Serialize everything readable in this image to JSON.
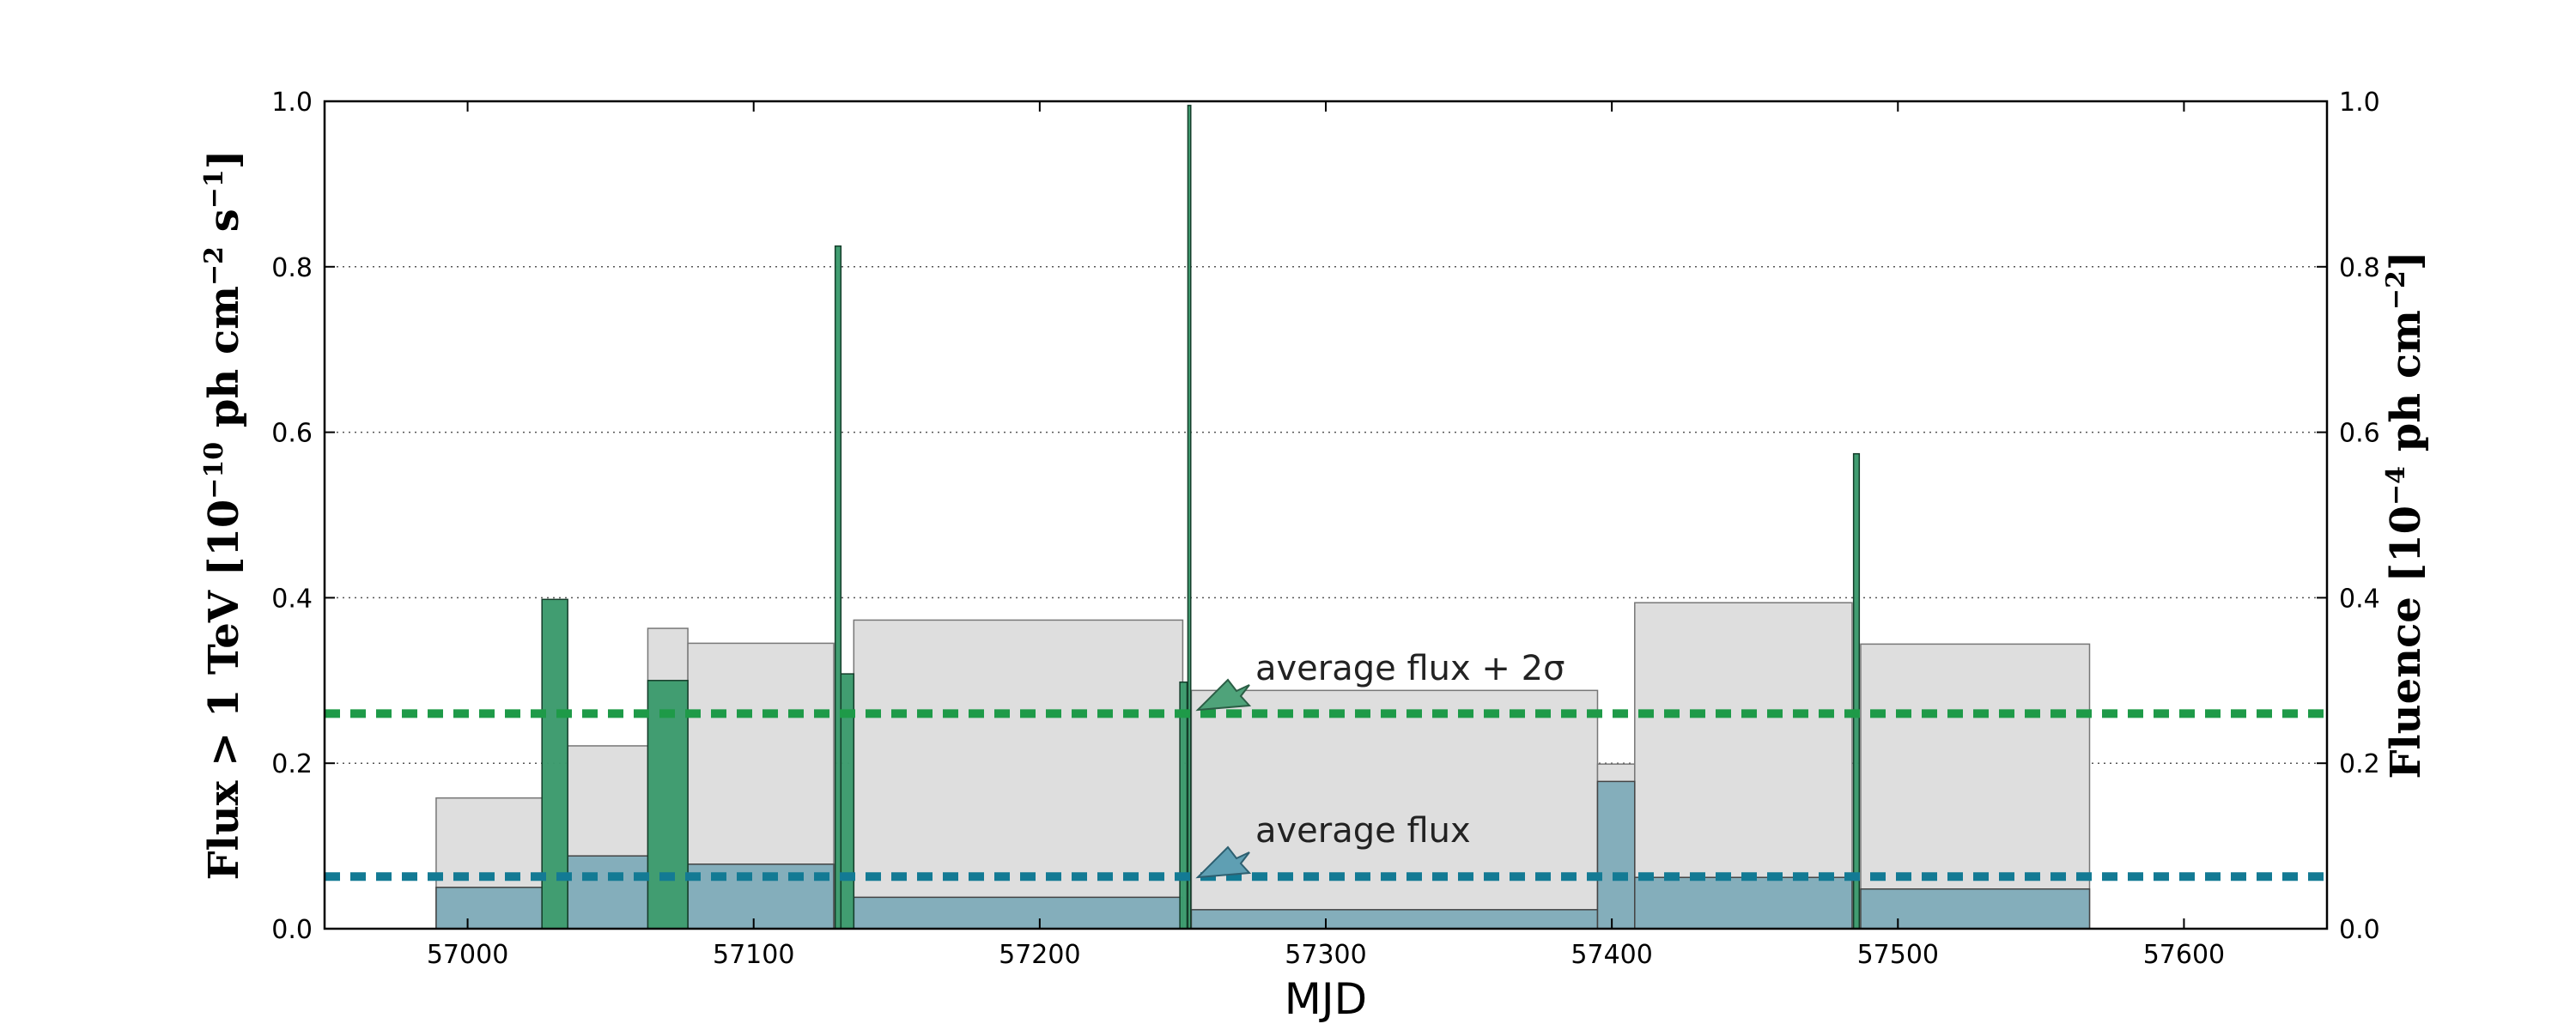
{
  "chart_data": {
    "type": "bar",
    "xlabel": "MJD",
    "ylabel_left": {
      "main": "Flux > 1 TeV [10",
      "exp1": "−10",
      "mid": " ph cm",
      "exp2": "−2",
      "mid2": " s",
      "exp3": "−1",
      "end": "]"
    },
    "ylabel_right": {
      "main": "Fluence [10",
      "exp1": "−4",
      "mid": " ph cm",
      "exp2": "−2",
      "end": "]"
    },
    "xlim": [
      56950,
      57650
    ],
    "xticks": [
      57000,
      57100,
      57200,
      57300,
      57400,
      57500,
      57600
    ],
    "ylim": [
      0.0,
      1.0
    ],
    "yticks": [
      0.0,
      0.2,
      0.4,
      0.6,
      0.8,
      1.0
    ],
    "ytick_labels": [
      "0.0",
      "0.2",
      "0.4",
      "0.6",
      "0.8",
      "1.0"
    ],
    "grid": "horizontal dotted",
    "series": [
      {
        "name": "fluence",
        "color": "#dedede",
        "bins": [
          {
            "x0": 56989,
            "x1": 57026,
            "value": 0.158
          },
          {
            "x0": 57035,
            "x1": 57063,
            "value": 0.221
          },
          {
            "x0": 57063,
            "x1": 57077,
            "value": 0.363
          },
          {
            "x0": 57077,
            "x1": 57128,
            "value": 0.345
          },
          {
            "x0": 57135,
            "x1": 57250,
            "value": 0.373
          },
          {
            "x0": 57253,
            "x1": 57395,
            "value": 0.288
          },
          {
            "x0": 57395,
            "x1": 57408,
            "value": 0.199
          },
          {
            "x0": 57408,
            "x1": 57484,
            "value": 0.394
          },
          {
            "x0": 57487,
            "x1": 57567,
            "value": 0.344
          }
        ]
      },
      {
        "name": "flux",
        "color": "#84aebb",
        "bins": [
          {
            "x0": 56989,
            "x1": 57026,
            "value": 0.05
          },
          {
            "x0": 57035,
            "x1": 57063,
            "value": 0.088
          },
          {
            "x0": 57077,
            "x1": 57128,
            "value": 0.078
          },
          {
            "x0": 57135,
            "x1": 57250,
            "value": 0.038
          },
          {
            "x0": 57253,
            "x1": 57395,
            "value": 0.023
          },
          {
            "x0": 57395,
            "x1": 57408,
            "value": 0.178
          },
          {
            "x0": 57408,
            "x1": 57484,
            "value": 0.062
          },
          {
            "x0": 57487,
            "x1": 57567,
            "value": 0.048
          }
        ]
      },
      {
        "name": "flares",
        "color": "#3d9b6e",
        "bins": [
          {
            "x0": 57026,
            "x1": 57035,
            "value": 0.398
          },
          {
            "x0": 57063,
            "x1": 57077,
            "value": 0.3
          },
          {
            "x0": 57128.5,
            "x1": 57130.5,
            "value": 0.825
          },
          {
            "x0": 57130.5,
            "x1": 57135,
            "value": 0.308
          },
          {
            "x0": 57249,
            "x1": 57251.5,
            "value": 0.298
          },
          {
            "x0": 57251.8,
            "x1": 57252.8,
            "value": 0.995
          },
          {
            "x0": 57484.5,
            "x1": 57486.5,
            "value": 0.574
          }
        ]
      }
    ],
    "reference_lines": [
      {
        "value": 0.26,
        "color": "#1e9a48",
        "label": "average flux + 2σ"
      },
      {
        "value": 0.063,
        "color": "#137a94",
        "label": "average flux"
      }
    ]
  }
}
